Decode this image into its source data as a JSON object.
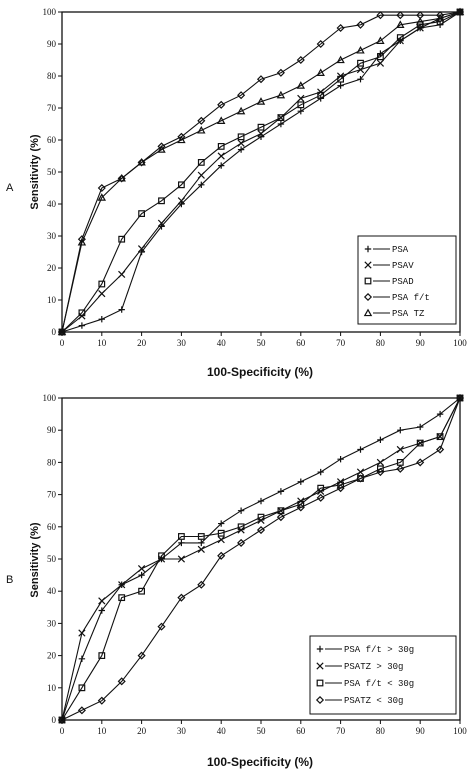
{
  "chart_data": [
    {
      "type": "line",
      "panel_label": "A",
      "xlabel": "100-Specificity (%)",
      "ylabel": "Sensitivity (%)",
      "xlim": [
        0,
        100
      ],
      "ylim": [
        0,
        100
      ],
      "xticks": [
        0,
        10,
        20,
        30,
        40,
        50,
        60,
        70,
        80,
        90,
        100
      ],
      "yticks": [
        0,
        10,
        20,
        30,
        40,
        50,
        60,
        70,
        80,
        90,
        100
      ],
      "legend_position": "bottom-right",
      "series": [
        {
          "name": "PSA",
          "marker": "plus",
          "x": [
            0,
            5,
            10,
            15,
            20,
            25,
            30,
            35,
            40,
            45,
            50,
            55,
            60,
            65,
            70,
            75,
            80,
            85,
            90,
            95,
            100
          ],
          "y": [
            0,
            2,
            4,
            7,
            25,
            33,
            40,
            46,
            52,
            57,
            61,
            65,
            69,
            73,
            77,
            79,
            87,
            91,
            95,
            96,
            100
          ]
        },
        {
          "name": "PSAV",
          "marker": "cross",
          "x": [
            0,
            5,
            10,
            15,
            20,
            25,
            30,
            35,
            40,
            45,
            50,
            55,
            60,
            65,
            70,
            75,
            80,
            85,
            90,
            95,
            100
          ],
          "y": [
            0,
            5,
            12,
            18,
            26,
            34,
            41,
            49,
            55,
            59,
            62,
            67,
            73,
            75,
            80,
            82,
            84,
            91,
            95,
            98,
            100
          ]
        },
        {
          "name": "PSAD",
          "marker": "square",
          "x": [
            0,
            5,
            10,
            15,
            20,
            25,
            30,
            35,
            40,
            45,
            50,
            55,
            60,
            65,
            70,
            75,
            80,
            85,
            90,
            95,
            100
          ],
          "y": [
            0,
            6,
            15,
            29,
            37,
            41,
            46,
            53,
            58,
            61,
            64,
            67,
            71,
            74,
            79,
            84,
            86,
            92,
            96,
            97,
            100
          ]
        },
        {
          "name": "PSA f/t",
          "marker": "diamond",
          "x": [
            0,
            5,
            10,
            15,
            20,
            25,
            30,
            35,
            40,
            45,
            50,
            55,
            60,
            65,
            70,
            75,
            80,
            85,
            90,
            95,
            100
          ],
          "y": [
            0,
            29,
            45,
            48,
            53,
            58,
            61,
            66,
            71,
            74,
            79,
            81,
            85,
            90,
            95,
            96,
            99,
            99,
            99,
            99,
            100
          ]
        },
        {
          "name": "PSA TZ",
          "marker": "triangle",
          "x": [
            0,
            5,
            10,
            15,
            20,
            25,
            30,
            35,
            40,
            45,
            50,
            55,
            60,
            65,
            70,
            75,
            80,
            85,
            90,
            95,
            100
          ],
          "y": [
            0,
            28,
            42,
            48,
            53,
            57,
            60,
            63,
            66,
            69,
            72,
            74,
            77,
            81,
            85,
            88,
            91,
            96,
            97,
            98,
            100
          ]
        }
      ]
    },
    {
      "type": "line",
      "panel_label": "B",
      "xlabel": "100-Specificity (%)",
      "ylabel": "Sensitivity (%)",
      "xlim": [
        0,
        100
      ],
      "ylim": [
        0,
        100
      ],
      "xticks": [
        0,
        10,
        20,
        30,
        40,
        50,
        60,
        70,
        80,
        90,
        100
      ],
      "yticks": [
        0,
        10,
        20,
        30,
        40,
        50,
        60,
        70,
        80,
        90,
        100
      ],
      "legend_position": "bottom-right",
      "series": [
        {
          "name": "PSA f/t > 30g",
          "marker": "plus",
          "x": [
            0,
            5,
            10,
            15,
            20,
            25,
            30,
            35,
            40,
            45,
            50,
            55,
            60,
            65,
            70,
            75,
            80,
            85,
            90,
            95,
            100
          ],
          "y": [
            0,
            19,
            34,
            42,
            45,
            50,
            55,
            55,
            61,
            65,
            68,
            71,
            74,
            77,
            81,
            84,
            87,
            90,
            91,
            95,
            100
          ]
        },
        {
          "name": "PSATZ > 30g",
          "marker": "cross",
          "x": [
            0,
            5,
            10,
            15,
            20,
            25,
            30,
            35,
            40,
            45,
            50,
            55,
            60,
            65,
            70,
            75,
            80,
            85,
            90,
            95,
            100
          ],
          "y": [
            0,
            27,
            37,
            42,
            47,
            50,
            50,
            53,
            56,
            59,
            62,
            65,
            68,
            71,
            74,
            77,
            80,
            84,
            86,
            88,
            100
          ]
        },
        {
          "name": "PSA f/t < 30g",
          "marker": "square",
          "x": [
            0,
            5,
            10,
            15,
            20,
            25,
            30,
            35,
            40,
            45,
            50,
            55,
            60,
            65,
            70,
            75,
            80,
            85,
            90,
            95,
            100
          ],
          "y": [
            0,
            10,
            20,
            38,
            40,
            51,
            57,
            57,
            58,
            60,
            63,
            65,
            67,
            72,
            73,
            75,
            78,
            80,
            86,
            88,
            100
          ]
        },
        {
          "name": "PSATZ < 30g",
          "marker": "diamond",
          "x": [
            0,
            5,
            10,
            15,
            20,
            25,
            30,
            35,
            40,
            45,
            50,
            55,
            60,
            65,
            70,
            75,
            80,
            85,
            90,
            95,
            100
          ],
          "y": [
            0,
            3,
            6,
            12,
            20,
            29,
            38,
            42,
            51,
            55,
            59,
            63,
            66,
            69,
            72,
            75,
            77,
            78,
            80,
            84,
            100
          ]
        }
      ]
    }
  ]
}
